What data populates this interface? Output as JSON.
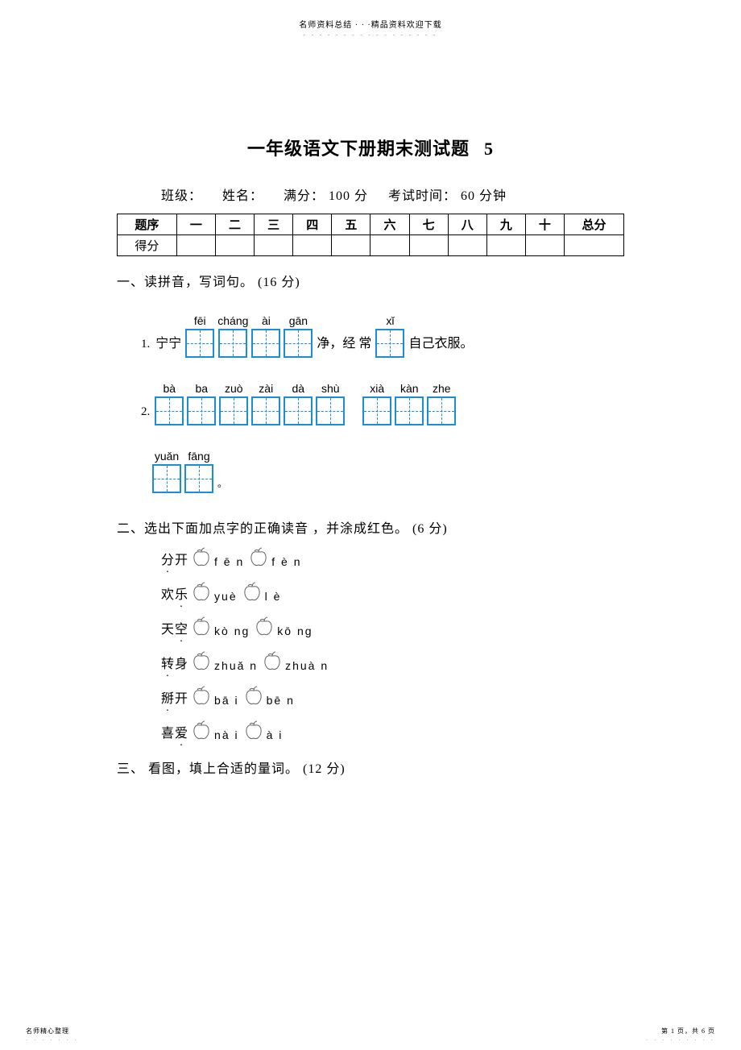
{
  "header_top": "名师资料总结 · · ·精品资料欢迎下载",
  "title_main": "一年级语文下册期末测试题",
  "title_num": "5",
  "meta": {
    "class": "班级：",
    "name": "姓名：",
    "full": "满分： 100 分",
    "time": "考试时间： 60 分钟"
  },
  "score_table": {
    "row_label_1": "题序",
    "row_label_2": "得分",
    "cols": [
      "一",
      "二",
      "三",
      "四",
      "五",
      "六",
      "七",
      "八",
      "九",
      "十",
      "总分"
    ]
  },
  "s1": {
    "heading": "一、读拼音，写词句。 (16 分)",
    "q1": {
      "num": "1.",
      "pre": "宁宁",
      "groups": [
        {
          "pinyin": "fēi",
          "boxes": 1
        },
        {
          "pinyin": "cháng",
          "boxes": 1
        },
        {
          "pinyin": "ài",
          "boxes": 1
        },
        {
          "pinyin": "gān",
          "boxes": 1
        }
      ],
      "mid": "净，经 常",
      "group_xi": {
        "pinyin": "xǐ",
        "boxes": 1
      },
      "post": "自己衣服。"
    },
    "q2": {
      "num": "2.",
      "groups_a": [
        {
          "pinyin": "bà",
          "boxes": 1
        },
        {
          "pinyin": "ba",
          "boxes": 1
        },
        {
          "pinyin": "zuò",
          "boxes": 1
        },
        {
          "pinyin": "zài",
          "boxes": 1
        },
        {
          "pinyin": "dà",
          "boxes": 1
        },
        {
          "pinyin": "shù",
          "boxes": 1
        }
      ],
      "groups_b": [
        {
          "pinyin": "xià",
          "boxes": 1
        },
        {
          "pinyin": "kàn",
          "boxes": 1
        },
        {
          "pinyin": "zhe",
          "boxes": 1
        }
      ],
      "groups_c": [
        {
          "pinyin": "yuǎn",
          "boxes": 1
        },
        {
          "pinyin": "fāng",
          "boxes": 1
        }
      ],
      "period": "。"
    }
  },
  "s2": {
    "heading": "二、选出下面加点字的正确读音 ，并涂成红色。 (6 分)",
    "items": [
      {
        "word_a": "分",
        "word_b": "开",
        "opts": [
          "f ē n",
          "f è n"
        ]
      },
      {
        "word_a": "欢",
        "word_b": "乐",
        "opts": [
          "yuè",
          "l è"
        ]
      },
      {
        "word_a": "天",
        "word_b": "空",
        "opts": [
          "kò ng",
          "kō ng"
        ]
      },
      {
        "word_a": "转",
        "word_b": "身",
        "opts": [
          "zhuǎ n",
          "zhuà n"
        ]
      },
      {
        "word_a": "掰",
        "word_b": "开",
        "opts": [
          "bā i",
          "bē n"
        ]
      },
      {
        "word_a": "喜",
        "word_b": "爱",
        "opts": [
          "nà i",
          "à i"
        ]
      }
    ],
    "dot_index": [
      0,
      1,
      1,
      0,
      0,
      1
    ]
  },
  "s3": {
    "heading": "三、 看图，填上合适的量词。 (12 分)"
  },
  "footer_left": "名师精心整理",
  "footer_right": "第 1 页，共 6 页",
  "apple_stroke": "#666666",
  "box_color": "#1b8fd6"
}
